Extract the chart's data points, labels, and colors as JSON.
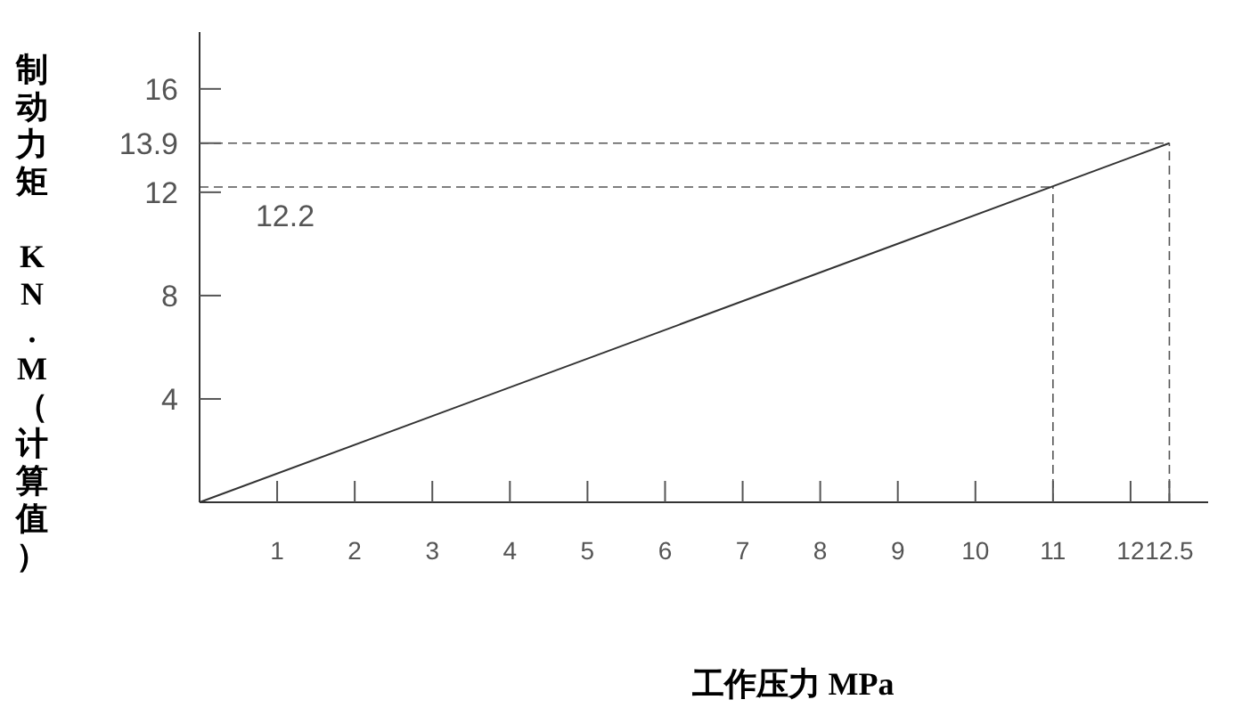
{
  "chart_data": {
    "type": "line",
    "xlabel": "工作压力 MPa",
    "ylabel": "制动力矩 KN.M（计算值）",
    "x": [
      0,
      12.5
    ],
    "series": [
      {
        "color": "#333333",
        "values": [
          0,
          13.9
        ]
      }
    ],
    "xlim": [
      0,
      13
    ],
    "ylim": [
      0,
      18.2
    ],
    "xticks": [
      1,
      2,
      3,
      4,
      5,
      6,
      7,
      8,
      9,
      10,
      11,
      12,
      12.5
    ],
    "yticks": [
      4,
      8,
      12,
      13.9,
      16
    ],
    "ref_lines": [
      {
        "axis": "y",
        "value": 13.9,
        "line_style": "dashed",
        "color": "#555555"
      },
      {
        "axis": "x",
        "value": 12.5,
        "line_style": "dashed",
        "color": "#555555"
      },
      {
        "axis": "y",
        "value": 12.2,
        "label": "12.2",
        "line_style": "dashed",
        "color": "#555555"
      },
      {
        "axis": "x",
        "value": 11,
        "line_style": "dashed",
        "color": "#555555"
      }
    ],
    "grid": false,
    "line_style": "solid"
  }
}
